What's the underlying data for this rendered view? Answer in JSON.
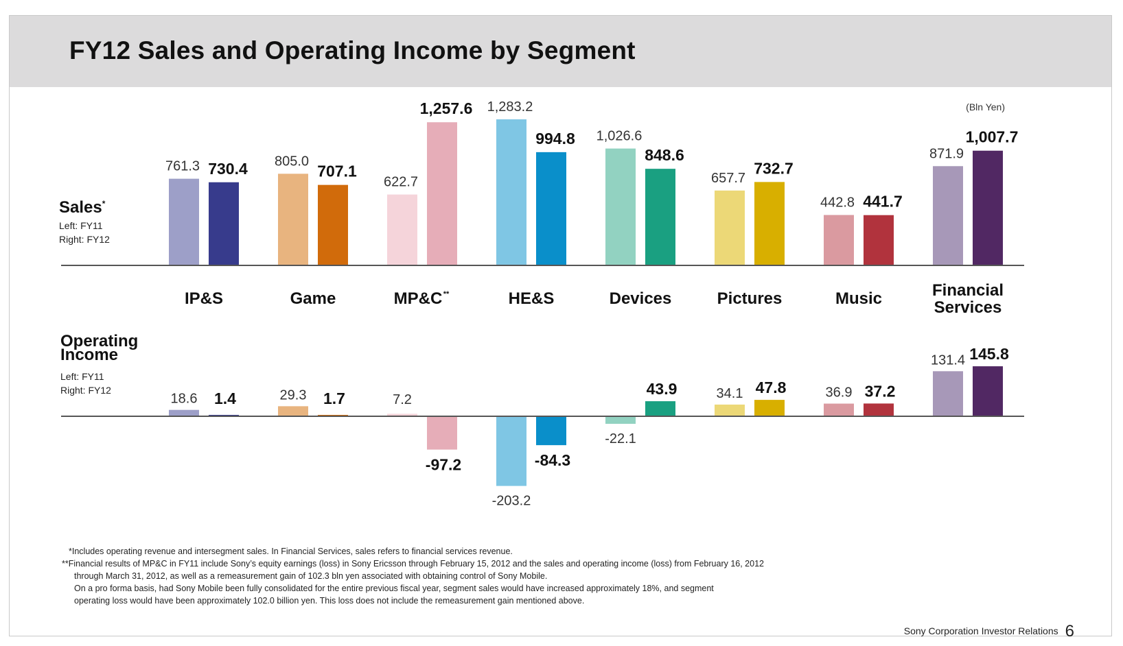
{
  "title": "FY12  Sales and Operating Income by Segment",
  "unit_label": "(Bln Yen)",
  "sales_block": {
    "label": "Sales",
    "label_sup": "*",
    "legend_left": "Left:   FY11",
    "legend_right": "Right: FY12"
  },
  "oi_block": {
    "label_line1": "Operating",
    "label_line2": "Income",
    "legend_left": "Left:   FY11",
    "legend_right": "Right: FY12"
  },
  "chart_data": [
    {
      "type": "bar",
      "title": "Sales",
      "categories": [
        "IP&S",
        "Game",
        "MP&C**",
        "HE&S",
        "Devices",
        "Pictures",
        "Music",
        "Financial Services"
      ],
      "series": [
        {
          "name": "FY11",
          "values": [
            761.3,
            805.0,
            622.7,
            1283.2,
            1026.6,
            657.7,
            442.8,
            871.9
          ]
        },
        {
          "name": "FY12",
          "values": [
            730.4,
            707.1,
            1257.6,
            994.8,
            848.6,
            732.7,
            441.7,
            1007.7
          ]
        }
      ],
      "value_labels": {
        "FY11": [
          "761.3",
          "805.0",
          "622.7",
          "1,283.2",
          "1,026.6",
          "657.7",
          "442.8",
          "871.9"
        ],
        "FY12": [
          "730.4",
          "707.1",
          "1,257.6",
          "994.8",
          "848.6",
          "732.7",
          "441.7",
          "1,007.7"
        ]
      },
      "ylim": [
        0,
        1283.2
      ]
    },
    {
      "type": "bar",
      "title": "Operating Income",
      "categories": [
        "IP&S",
        "Game",
        "MP&C**",
        "HE&S",
        "Devices",
        "Pictures",
        "Music",
        "Financial Services"
      ],
      "series": [
        {
          "name": "FY11",
          "values": [
            18.6,
            29.3,
            7.2,
            -203.2,
            -22.1,
            34.1,
            36.9,
            131.4
          ]
        },
        {
          "name": "FY12",
          "values": [
            1.4,
            1.7,
            -97.2,
            -84.3,
            43.9,
            47.8,
            37.2,
            145.8
          ]
        }
      ],
      "value_labels": {
        "FY11": [
          "18.6",
          "29.3",
          "7.2",
          "-203.2",
          "-22.1",
          "34.1",
          "36.9",
          "131.4"
        ],
        "FY12": [
          "1.4",
          "1.7",
          "-97.2",
          "-84.3",
          "43.9",
          "47.8",
          "37.2",
          "145.8"
        ]
      },
      "ylim": [
        -203.2,
        145.8
      ]
    }
  ],
  "category_labels": [
    {
      "lines": [
        "IP&S"
      ]
    },
    {
      "lines": [
        "Game"
      ]
    },
    {
      "lines": [
        "MP&C",
        "**"
      ]
    },
    {
      "lines": [
        "HE&S"
      ]
    },
    {
      "lines": [
        "Devices"
      ]
    },
    {
      "lines": [
        "Pictures"
      ]
    },
    {
      "lines": [
        "Music"
      ]
    },
    {
      "lines": [
        "Financial",
        "Services"
      ]
    }
  ],
  "colors": {
    "fy11": [
      "#9d9fc8",
      "#e8b47f",
      "#f5d4da",
      "#7fc6e4",
      "#92d2c1",
      "#ecd877",
      "#da9aa0",
      "#a798b8"
    ],
    "fy12": [
      "#373b8c",
      "#d16b0b",
      "#e6adb8",
      "#0a8fca",
      "#1aa081",
      "#d8af00",
      "#b1333d",
      "#512863"
    ],
    "title_band": "#dcdbdc"
  },
  "footnotes": {
    "line1": "*Includes operating revenue and intersegment sales.  In Financial Services, sales refers to financial services revenue.",
    "line2": "**Financial results of MP&C in FY11 include Sony’s equity earnings (loss) in Sony Ericsson through February 15, 2012 and the sales and operating income (loss) from February 16, 2012",
    "line3": "through March 31, 2012, as well as a remeasurement gain of 102.3 bln yen associated with obtaining control of Sony Mobile.",
    "line4": "On a pro forma basis, had Sony Mobile been fully consolidated for the entire previous fiscal year, segment sales would have increased approximately 18%, and segment",
    "line5": "operating loss would have been approximately 102.0 billion yen.  This loss does not include the remeasurement gain mentioned above."
  },
  "footer": {
    "company": "Sony Corporation  Investor Relations",
    "page": "6"
  }
}
